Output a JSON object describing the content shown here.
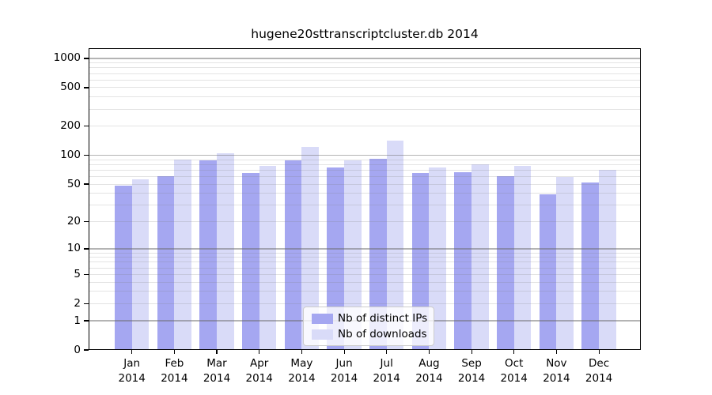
{
  "chart_data": {
    "type": "bar",
    "title": "hugene20sttranscriptcluster.db 2014",
    "months": [
      "Jan",
      "Feb",
      "Mar",
      "Apr",
      "May",
      "Jun",
      "Jul",
      "Aug",
      "Sep",
      "Oct",
      "Nov",
      "Dec"
    ],
    "year_label": "2014",
    "categories": [
      "Jan 2014",
      "Feb 2014",
      "Mar 2014",
      "Apr 2014",
      "May 2014",
      "Jun 2014",
      "Jul 2014",
      "Aug 2014",
      "Sep 2014",
      "Oct 2014",
      "Nov 2014",
      "Dec 2014"
    ],
    "series": [
      {
        "name": "Nb of distinct IPs",
        "color": "#a5a7f1",
        "values": [
          48,
          61,
          88,
          65,
          88,
          75,
          92,
          65,
          66,
          61,
          39,
          52
        ]
      },
      {
        "name": "Nb of downloads",
        "color": "#d9dbf8",
        "values": [
          56,
          91,
          104,
          77,
          122,
          89,
          142,
          74,
          81,
          78,
          59,
          70
        ]
      }
    ],
    "xlabel": "",
    "ylabel": "",
    "y_scale": "log(1+x)",
    "y_ticks": [
      0,
      1,
      2,
      5,
      10,
      20,
      50,
      100,
      200,
      500,
      1000
    ],
    "ylim": [
      0,
      1270
    ],
    "grid": "horizontal-log-minor-and-major",
    "legend_position": "inside-bottom-center",
    "colors": {
      "major_grid": "#b0b0b0",
      "minor_grid": "#e8e8e8",
      "frame": "#000000",
      "background": "#ffffff"
    }
  }
}
